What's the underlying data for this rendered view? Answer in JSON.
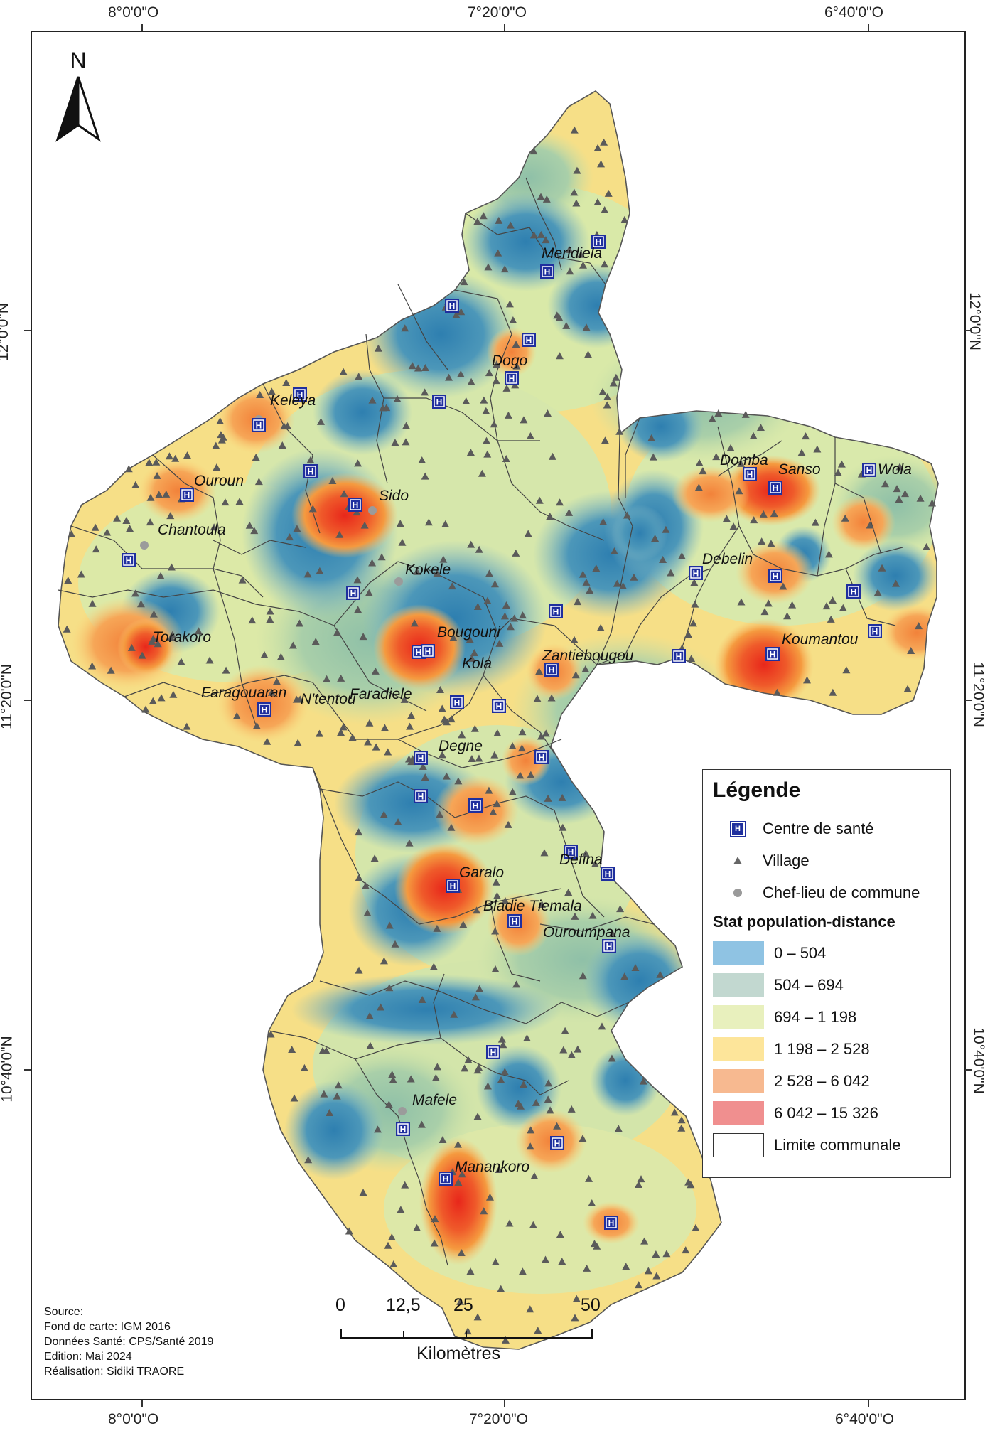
{
  "coordinates": {
    "top": [
      "8°0'0\"O",
      "7°20'0\"O",
      "6°40'0\"O"
    ],
    "bottom": [
      "8°0'0\"O",
      "7°20'0\"O",
      "6°40'0\"O"
    ],
    "left": [
      "12°0'0\"N",
      "11°20'0\"N",
      "10°40'0\"N"
    ],
    "right": [
      "12°0'0\"N",
      "11°20'0\"N",
      "10°40'0\"N"
    ]
  },
  "north_arrow": {
    "label": "N"
  },
  "places": {
    "meridiela": "Meridiela",
    "dogo": "Dogo",
    "keleya": "Keleya",
    "ouroun": "Ouroun",
    "sido": "Sido",
    "chantoula": "Chantoula",
    "domba": "Domba",
    "sanso": "Sanso",
    "wola": "Wola",
    "debelin": "Debelin",
    "kokele": "Kokele",
    "bougouni": "Bougouni",
    "torakoro": "Torakoro",
    "koumantou": "Koumantou",
    "kola": "Kola",
    "zantiebougou": "Zantiebougou",
    "ntentou": "N'tentou",
    "faragouaran": "Faragouaran",
    "faradiele": "Faradiele",
    "degne": "Degne",
    "defina": "Defina",
    "garalo": "Garalo",
    "bladie_tiemala": "Bladie Tiemala",
    "ouroumpana": "Ouroumpana",
    "mafele": "Mafele",
    "manankoro": "Manankoro"
  },
  "legend": {
    "title": "Légende",
    "health_center": "Centre de santé",
    "health_center_symbol": "H",
    "village": "Village",
    "commune_seat": "Chef-lieu de commune",
    "stat_title": "Stat population-distance",
    "classes": [
      {
        "label": "0 – 504",
        "color": "#8fc3e3"
      },
      {
        "label": "504 – 694",
        "color": "#c2d8d0"
      },
      {
        "label": "694 – 1 198",
        "color": "#e8f0bd"
      },
      {
        "label": "1 198 – 2 528",
        "color": "#fde59a"
      },
      {
        "label": "2 528 – 6 042",
        "color": "#f7b990"
      },
      {
        "label": "6 042 – 15 326",
        "color": "#f08f8f"
      }
    ],
    "boundary": "Limite communale"
  },
  "scale": {
    "ticks": [
      "0",
      "12,5",
      "25",
      "50"
    ],
    "unit": "Kilomètres"
  },
  "credits": {
    "line1": "Source:",
    "line2": "Fond de carte: IGM 2016",
    "line3": "Données Santé: CPS/Santé 2019",
    "line4": "Edition: Mai 2024",
    "line5": "Réalisation: Sidiki TRAORE"
  }
}
